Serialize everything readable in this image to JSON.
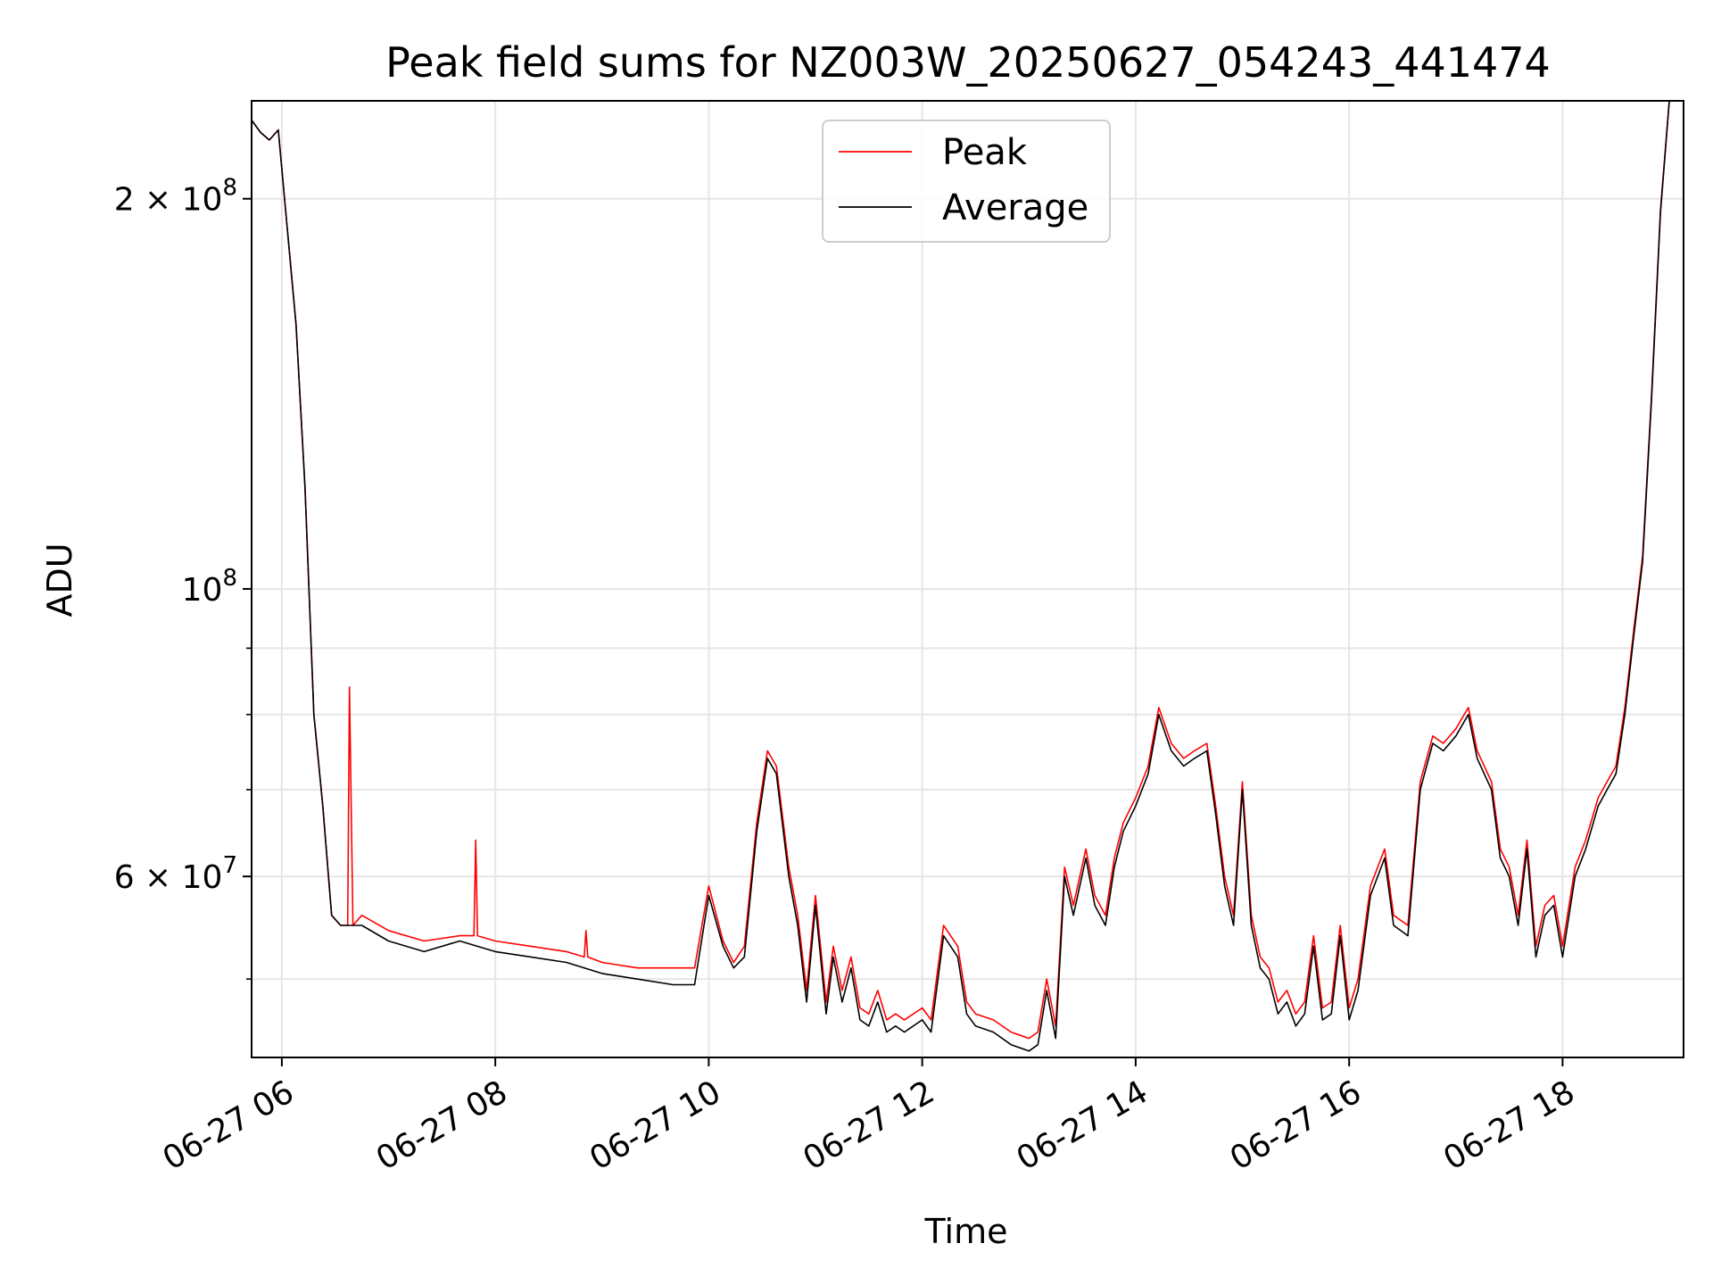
{
  "chart_data": {
    "type": "line",
    "title": "Peak field sums for NZ003W_20250627_054243_441474",
    "xlabel": "Time",
    "ylabel": "ADU",
    "y_scale": "log",
    "ylim": [
      43500000,
      238000000
    ],
    "xlim": [
      "2025-06-27 05:43",
      "2025-06-27 19:08"
    ],
    "x_ticks": [
      {
        "label": "06-27 06",
        "value": "2025-06-27 06:00"
      },
      {
        "label": "06-27 08",
        "value": "2025-06-27 08:00"
      },
      {
        "label": "06-27 10",
        "value": "2025-06-27 10:00"
      },
      {
        "label": "06-27 12",
        "value": "2025-06-27 12:00"
      },
      {
        "label": "06-27 14",
        "value": "2025-06-27 14:00"
      },
      {
        "label": "06-27 16",
        "value": "2025-06-27 16:00"
      },
      {
        "label": "06-27 18",
        "value": "2025-06-27 18:00"
      }
    ],
    "y_ticks": [
      {
        "base": "6 × 10",
        "exp": "7",
        "value": 60000000
      },
      {
        "base": "10",
        "exp": "8",
        "value": 100000000
      },
      {
        "base": "2 × 10",
        "exp": "8",
        "value": 200000000
      }
    ],
    "y_minor_grid": [
      50000000,
      70000000,
      80000000,
      90000000
    ],
    "grid": true,
    "legend": {
      "placement": "upper-center"
    },
    "colors": {
      "peak": "#ff0000",
      "average": "#000000",
      "grid": "#e6e6e6"
    },
    "series": [
      {
        "name": "Average",
        "x": [
          "2025-06-27 05:43",
          "2025-06-27 05:48",
          "2025-06-27 05:53",
          "2025-06-27 05:58",
          "2025-06-27 06:03",
          "2025-06-27 06:08",
          "2025-06-27 06:13",
          "2025-06-27 06:18",
          "2025-06-27 06:23",
          "2025-06-27 06:28",
          "2025-06-27 06:33",
          "2025-06-27 06:38",
          "2025-06-27 06:45",
          "2025-06-27 07:00",
          "2025-06-27 07:20",
          "2025-06-27 07:40",
          "2025-06-27 08:00",
          "2025-06-27 08:20",
          "2025-06-27 08:40",
          "2025-06-27 09:00",
          "2025-06-27 09:20",
          "2025-06-27 09:40",
          "2025-06-27 09:52",
          "2025-06-27 10:00",
          "2025-06-27 10:08",
          "2025-06-27 10:14",
          "2025-06-27 10:20",
          "2025-06-27 10:27",
          "2025-06-27 10:33",
          "2025-06-27 10:38",
          "2025-06-27 10:45",
          "2025-06-27 10:50",
          "2025-06-27 10:55",
          "2025-06-27 11:00",
          "2025-06-27 11:06",
          "2025-06-27 11:10",
          "2025-06-27 11:15",
          "2025-06-27 11:20",
          "2025-06-27 11:25",
          "2025-06-27 11:30",
          "2025-06-27 11:35",
          "2025-06-27 11:40",
          "2025-06-27 11:45",
          "2025-06-27 11:50",
          "2025-06-27 12:00",
          "2025-06-27 12:05",
          "2025-06-27 12:12",
          "2025-06-27 12:20",
          "2025-06-27 12:25",
          "2025-06-27 12:30",
          "2025-06-27 12:40",
          "2025-06-27 12:50",
          "2025-06-27 13:00",
          "2025-06-27 13:05",
          "2025-06-27 13:10",
          "2025-06-27 13:15",
          "2025-06-27 13:20",
          "2025-06-27 13:25",
          "2025-06-27 13:32",
          "2025-06-27 13:37",
          "2025-06-27 13:43",
          "2025-06-27 13:48",
          "2025-06-27 13:53",
          "2025-06-27 14:00",
          "2025-06-27 14:07",
          "2025-06-27 14:13",
          "2025-06-27 14:20",
          "2025-06-27 14:27",
          "2025-06-27 14:33",
          "2025-06-27 14:40",
          "2025-06-27 14:45",
          "2025-06-27 14:50",
          "2025-06-27 14:55",
          "2025-06-27 15:00",
          "2025-06-27 15:05",
          "2025-06-27 15:10",
          "2025-06-27 15:15",
          "2025-06-27 15:20",
          "2025-06-27 15:25",
          "2025-06-27 15:30",
          "2025-06-27 15:35",
          "2025-06-27 15:40",
          "2025-06-27 15:45",
          "2025-06-27 15:50",
          "2025-06-27 15:55",
          "2025-06-27 16:00",
          "2025-06-27 16:05",
          "2025-06-27 16:12",
          "2025-06-27 16:20",
          "2025-06-27 16:25",
          "2025-06-27 16:33",
          "2025-06-27 16:40",
          "2025-06-27 16:47",
          "2025-06-27 16:53",
          "2025-06-27 17:00",
          "2025-06-27 17:07",
          "2025-06-27 17:12",
          "2025-06-27 17:20",
          "2025-06-27 17:25",
          "2025-06-27 17:30",
          "2025-06-27 17:35",
          "2025-06-27 17:40",
          "2025-06-27 17:45",
          "2025-06-27 17:50",
          "2025-06-27 17:55",
          "2025-06-27 18:00",
          "2025-06-27 18:07",
          "2025-06-27 18:13",
          "2025-06-27 18:20",
          "2025-06-27 18:25",
          "2025-06-27 18:30",
          "2025-06-27 18:35",
          "2025-06-27 18:40",
          "2025-06-27 18:45",
          "2025-06-27 18:50",
          "2025-06-27 18:55",
          "2025-06-27 19:00",
          "2025-06-27 19:05",
          "2025-06-27 19:08"
        ],
        "values": [
          230000000,
          225000000,
          222000000,
          226000000,
          190000000,
          160000000,
          120000000,
          80000000,
          68000000,
          56000000,
          55000000,
          55000000,
          55000000,
          53500000,
          52500000,
          53500000,
          52500000,
          52000000,
          51500000,
          50500000,
          50000000,
          49500000,
          49500000,
          58000000,
          53000000,
          51000000,
          52000000,
          65000000,
          74000000,
          72000000,
          60000000,
          55000000,
          48000000,
          57000000,
          47000000,
          52000000,
          48000000,
          51000000,
          46500000,
          46000000,
          48000000,
          45500000,
          46000000,
          45500000,
          46500000,
          45500000,
          54000000,
          52000000,
          47000000,
          46000000,
          45500000,
          44500000,
          44000000,
          44500000,
          49000000,
          45000000,
          60000000,
          56000000,
          62000000,
          57000000,
          55000000,
          61000000,
          65000000,
          68000000,
          72000000,
          80000000,
          75000000,
          73000000,
          74000000,
          75000000,
          67000000,
          59000000,
          55000000,
          70000000,
          55000000,
          51000000,
          50000000,
          47000000,
          48000000,
          46000000,
          47000000,
          53000000,
          46500000,
          47000000,
          54000000,
          46500000,
          49000000,
          58000000,
          62000000,
          55000000,
          54000000,
          70000000,
          76000000,
          75000000,
          77000000,
          80000000,
          74000000,
          70000000,
          62000000,
          60000000,
          55000000,
          63000000,
          52000000,
          56000000,
          57000000,
          52000000,
          60000000,
          63000000,
          68000000,
          70000000,
          72000000,
          80000000,
          92000000,
          105000000,
          140000000,
          195000000,
          238000000,
          238000000,
          238000000
        ]
      },
      {
        "name": "Peak",
        "x": [
          "2025-06-27 05:43",
          "2025-06-27 05:48",
          "2025-06-27 05:53",
          "2025-06-27 05:58",
          "2025-06-27 06:03",
          "2025-06-27 06:08",
          "2025-06-27 06:13",
          "2025-06-27 06:18",
          "2025-06-27 06:23",
          "2025-06-27 06:28",
          "2025-06-27 06:33",
          "2025-06-27 06:37",
          "2025-06-27 06:38",
          "2025-06-27 06:40",
          "2025-06-27 06:45",
          "2025-06-27 07:00",
          "2025-06-27 07:20",
          "2025-06-27 07:40",
          "2025-06-27 07:48",
          "2025-06-27 07:49",
          "2025-06-27 07:50",
          "2025-06-27 08:00",
          "2025-06-27 08:20",
          "2025-06-27 08:40",
          "2025-06-27 08:50",
          "2025-06-27 08:51",
          "2025-06-27 08:52",
          "2025-06-27 09:00",
          "2025-06-27 09:20",
          "2025-06-27 09:40",
          "2025-06-27 09:52",
          "2025-06-27 10:00",
          "2025-06-27 10:08",
          "2025-06-27 10:14",
          "2025-06-27 10:20",
          "2025-06-27 10:27",
          "2025-06-27 10:33",
          "2025-06-27 10:38",
          "2025-06-27 10:45",
          "2025-06-27 10:50",
          "2025-06-27 10:55",
          "2025-06-27 11:00",
          "2025-06-27 11:06",
          "2025-06-27 11:10",
          "2025-06-27 11:15",
          "2025-06-27 11:20",
          "2025-06-27 11:25",
          "2025-06-27 11:30",
          "2025-06-27 11:35",
          "2025-06-27 11:40",
          "2025-06-27 11:45",
          "2025-06-27 11:50",
          "2025-06-27 12:00",
          "2025-06-27 12:05",
          "2025-06-27 12:12",
          "2025-06-27 12:20",
          "2025-06-27 12:25",
          "2025-06-27 12:30",
          "2025-06-27 12:40",
          "2025-06-27 12:50",
          "2025-06-27 13:00",
          "2025-06-27 13:05",
          "2025-06-27 13:10",
          "2025-06-27 13:15",
          "2025-06-27 13:20",
          "2025-06-27 13:25",
          "2025-06-27 13:32",
          "2025-06-27 13:37",
          "2025-06-27 13:43",
          "2025-06-27 13:48",
          "2025-06-27 13:53",
          "2025-06-27 14:00",
          "2025-06-27 14:07",
          "2025-06-27 14:13",
          "2025-06-27 14:20",
          "2025-06-27 14:27",
          "2025-06-27 14:33",
          "2025-06-27 14:40",
          "2025-06-27 14:45",
          "2025-06-27 14:50",
          "2025-06-27 14:55",
          "2025-06-27 15:00",
          "2025-06-27 15:05",
          "2025-06-27 15:10",
          "2025-06-27 15:15",
          "2025-06-27 15:20",
          "2025-06-27 15:25",
          "2025-06-27 15:30",
          "2025-06-27 15:35",
          "2025-06-27 15:40",
          "2025-06-27 15:45",
          "2025-06-27 15:50",
          "2025-06-27 15:55",
          "2025-06-27 16:00",
          "2025-06-27 16:05",
          "2025-06-27 16:12",
          "2025-06-27 16:20",
          "2025-06-27 16:25",
          "2025-06-27 16:33",
          "2025-06-27 16:40",
          "2025-06-27 16:47",
          "2025-06-27 16:53",
          "2025-06-27 17:00",
          "2025-06-27 17:07",
          "2025-06-27 17:12",
          "2025-06-27 17:20",
          "2025-06-27 17:25",
          "2025-06-27 17:30",
          "2025-06-27 17:35",
          "2025-06-27 17:40",
          "2025-06-27 17:45",
          "2025-06-27 17:50",
          "2025-06-27 17:55",
          "2025-06-27 18:00",
          "2025-06-27 18:07",
          "2025-06-27 18:13",
          "2025-06-27 18:20",
          "2025-06-27 18:25",
          "2025-06-27 18:30",
          "2025-06-27 18:35",
          "2025-06-27 18:40",
          "2025-06-27 18:45",
          "2025-06-27 18:50",
          "2025-06-27 18:55",
          "2025-06-27 19:00",
          "2025-06-27 19:05",
          "2025-06-27 19:08"
        ],
        "values": [
          230000000,
          225000000,
          222000000,
          226000000,
          190000000,
          160000000,
          120000000,
          80000000,
          68000000,
          56000000,
          55000000,
          55000000,
          84000000,
          55000000,
          56000000,
          54500000,
          53500000,
          54000000,
          54000000,
          64000000,
          54000000,
          53500000,
          53000000,
          52500000,
          52000000,
          54500000,
          52000000,
          51500000,
          51000000,
          51000000,
          51000000,
          59000000,
          53500000,
          51500000,
          53000000,
          66000000,
          75000000,
          73000000,
          61000000,
          56000000,
          49000000,
          58000000,
          48000000,
          53000000,
          49000000,
          52000000,
          47500000,
          47000000,
          49000000,
          46500000,
          47000000,
          46500000,
          47500000,
          46500000,
          55000000,
          53000000,
          48000000,
          47000000,
          46500000,
          45500000,
          45000000,
          45500000,
          50000000,
          46000000,
          61000000,
          57000000,
          63000000,
          58000000,
          56000000,
          62000000,
          66000000,
          69000000,
          73000000,
          81000000,
          76000000,
          74000000,
          75000000,
          76000000,
          68000000,
          60000000,
          56000000,
          71000000,
          56000000,
          52000000,
          51000000,
          48000000,
          49000000,
          47000000,
          48000000,
          54000000,
          47500000,
          48000000,
          55000000,
          47500000,
          50000000,
          59000000,
          63000000,
          56000000,
          55000000,
          71000000,
          77000000,
          76000000,
          78000000,
          81000000,
          75000000,
          71000000,
          63000000,
          61000000,
          56000000,
          64000000,
          53000000,
          57000000,
          58000000,
          53000000,
          61000000,
          64000000,
          69000000,
          71000000,
          73000000,
          81000000,
          93000000,
          106000000,
          141000000,
          196000000,
          238000000,
          238000000,
          238000000
        ]
      }
    ]
  }
}
